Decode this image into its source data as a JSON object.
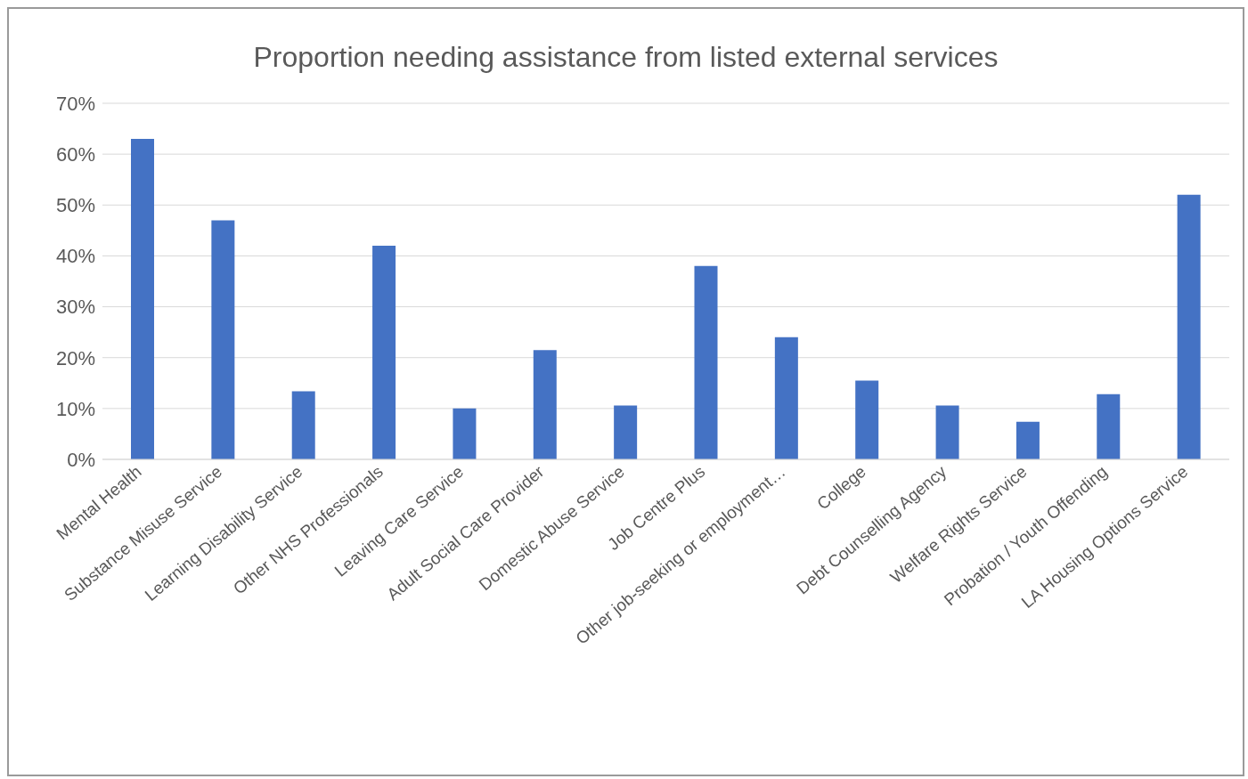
{
  "chart_data": {
    "type": "bar",
    "title": "Proportion  needing assistance from listed external services",
    "categories": [
      "Mental Health",
      "Substance Misuse Service",
      "Learning Disability Service",
      "Other NHS Professionals",
      "Leaving Care Service",
      "Adult Social Care Provider",
      "Domestic Abuse Service",
      "Job Centre Plus",
      "Other job-seeking or employment…",
      "College",
      "Debt Counselling Agency",
      "Welfare Rights Service",
      "Probation / Youth Offending",
      "LA Housing Options Service"
    ],
    "values": [
      63,
      47,
      13.4,
      42,
      10,
      21.5,
      10.6,
      38,
      24,
      15.5,
      10.6,
      7.4,
      12.8,
      52
    ],
    "color": "#4472c4",
    "ylim": [
      0,
      70
    ],
    "yticks": [
      {
        "value": 0,
        "label": "0%"
      },
      {
        "value": 10,
        "label": "10%"
      },
      {
        "value": 20,
        "label": "20%"
      },
      {
        "value": 30,
        "label": "30%"
      },
      {
        "value": 40,
        "label": "40%"
      },
      {
        "value": 50,
        "label": "50%"
      },
      {
        "value": 60,
        "label": "60%"
      },
      {
        "value": 70,
        "label": "70%"
      }
    ],
    "grid": "y"
  }
}
